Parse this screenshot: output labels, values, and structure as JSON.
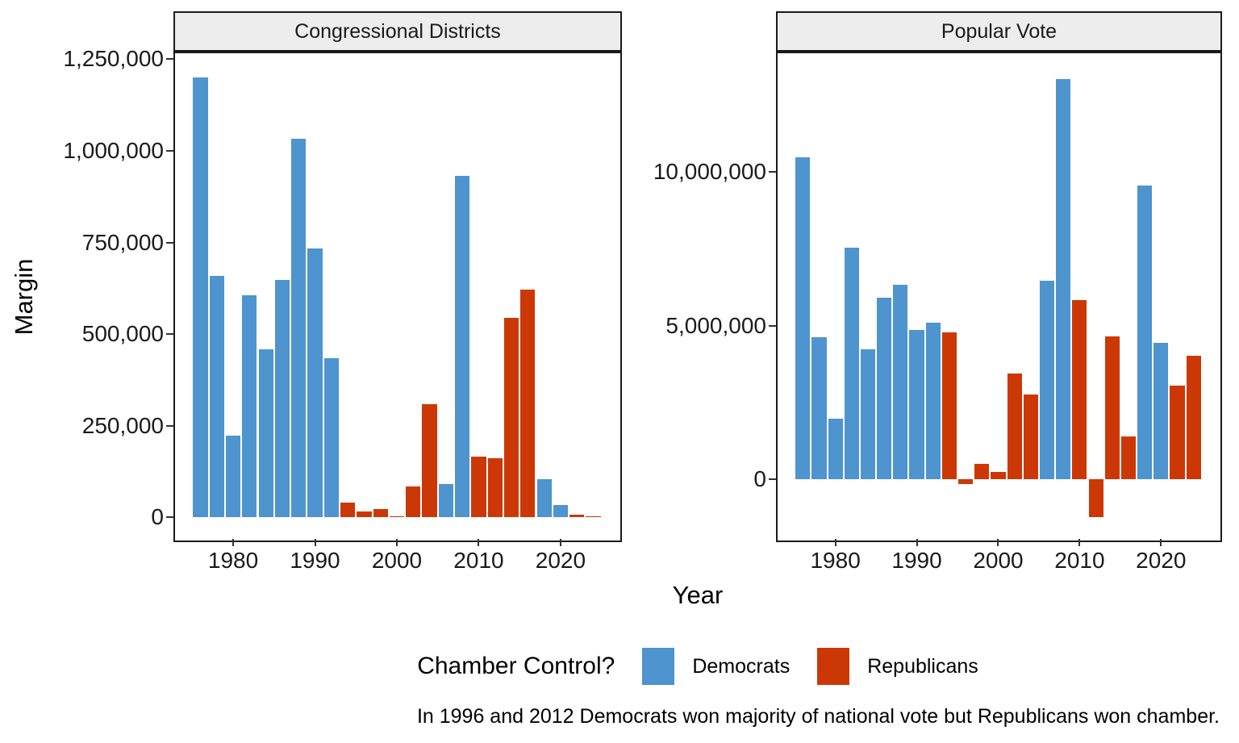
{
  "y_axis_title": "Margin",
  "x_axis_title": "Year",
  "legend": {
    "title": "Chamber Control?",
    "items": [
      {
        "label": "Democrats",
        "party": "D"
      },
      {
        "label": "Republicans",
        "party": "R"
      }
    ]
  },
  "caption": "In 1996 and 2012 Democrats won majority of national vote but Republicans won chamber.",
  "colors": {
    "democrats": "#4E94CE",
    "republicans": "#CC3805",
    "strip_bg": "#EDEDED",
    "panel_border": "#1A1A1A"
  },
  "chart_data": [
    {
      "type": "bar",
      "facet": "Congressional Districts",
      "xlabel": "Year",
      "ylabel": "Margin",
      "x": [
        1976,
        1978,
        1980,
        1982,
        1984,
        1986,
        1988,
        1990,
        1992,
        1994,
        1996,
        1998,
        2000,
        2002,
        2004,
        2006,
        2008,
        2010,
        2012,
        2014,
        2016,
        2018,
        2020,
        2022,
        2024
      ],
      "party": [
        "D",
        "D",
        "D",
        "D",
        "D",
        "D",
        "D",
        "D",
        "D",
        "R",
        "R",
        "R",
        "R",
        "R",
        "R",
        "D",
        "D",
        "R",
        "R",
        "R",
        "R",
        "D",
        "D",
        "R",
        "R"
      ],
      "values": [
        1200000,
        658000,
        223000,
        606000,
        459000,
        648000,
        1032000,
        733000,
        435000,
        40000,
        16000,
        22000,
        4000,
        85000,
        309000,
        90000,
        932000,
        165000,
        162000,
        544000,
        621000,
        105000,
        33000,
        7000,
        2000
      ],
      "ylim": [
        -63000,
        1266000
      ],
      "xlim": [
        1972.9,
        2027.3
      ],
      "bar_width_years": 1.8,
      "grid": false,
      "yticks": [
        {
          "value": 0,
          "label": "0"
        },
        {
          "value": 250000,
          "label": "250,000"
        },
        {
          "value": 500000,
          "label": "500,000"
        },
        {
          "value": 750000,
          "label": "750,000"
        },
        {
          "value": 1000000,
          "label": "1,000,000"
        },
        {
          "value": 1250000,
          "label": "1,250,000"
        }
      ],
      "xticks": [
        {
          "value": 1980,
          "label": "1980"
        },
        {
          "value": 1990,
          "label": "1990"
        },
        {
          "value": 2000,
          "label": "2000"
        },
        {
          "value": 2010,
          "label": "2010"
        },
        {
          "value": 2020,
          "label": "2020"
        }
      ]
    },
    {
      "type": "bar",
      "facet": "Popular Vote",
      "xlabel": "Year",
      "ylabel": "Margin",
      "x": [
        1976,
        1978,
        1980,
        1982,
        1984,
        1986,
        1988,
        1990,
        1992,
        1994,
        1996,
        1998,
        2000,
        2002,
        2004,
        2006,
        2008,
        2010,
        2012,
        2014,
        2016,
        2018,
        2020,
        2022,
        2024
      ],
      "party": [
        "D",
        "D",
        "D",
        "D",
        "D",
        "D",
        "D",
        "D",
        "D",
        "R",
        "R",
        "R",
        "R",
        "R",
        "R",
        "D",
        "D",
        "R",
        "R",
        "R",
        "R",
        "D",
        "D",
        "R",
        "R"
      ],
      "values": [
        10470000,
        4620000,
        1970000,
        7540000,
        4240000,
        5920000,
        6330000,
        4850000,
        5100000,
        4770000,
        -150000,
        520000,
        240000,
        3450000,
        2760000,
        6450000,
        13000000,
        5830000,
        -1220000,
        4640000,
        1400000,
        9560000,
        4430000,
        3060000,
        4010000
      ],
      "ylim": [
        -1980000,
        13850000
      ],
      "xlim": [
        1972.9,
        2027.3
      ],
      "bar_width_years": 1.8,
      "grid": false,
      "yticks": [
        {
          "value": 0,
          "label": "0"
        },
        {
          "value": 5000000,
          "label": "5,000,000"
        },
        {
          "value": 10000000,
          "label": "10,000,000"
        }
      ],
      "xticks": [
        {
          "value": 1980,
          "label": "1980"
        },
        {
          "value": 1990,
          "label": "1990"
        },
        {
          "value": 2000,
          "label": "2000"
        },
        {
          "value": 2010,
          "label": "2010"
        },
        {
          "value": 2020,
          "label": "2020"
        }
      ]
    }
  ]
}
